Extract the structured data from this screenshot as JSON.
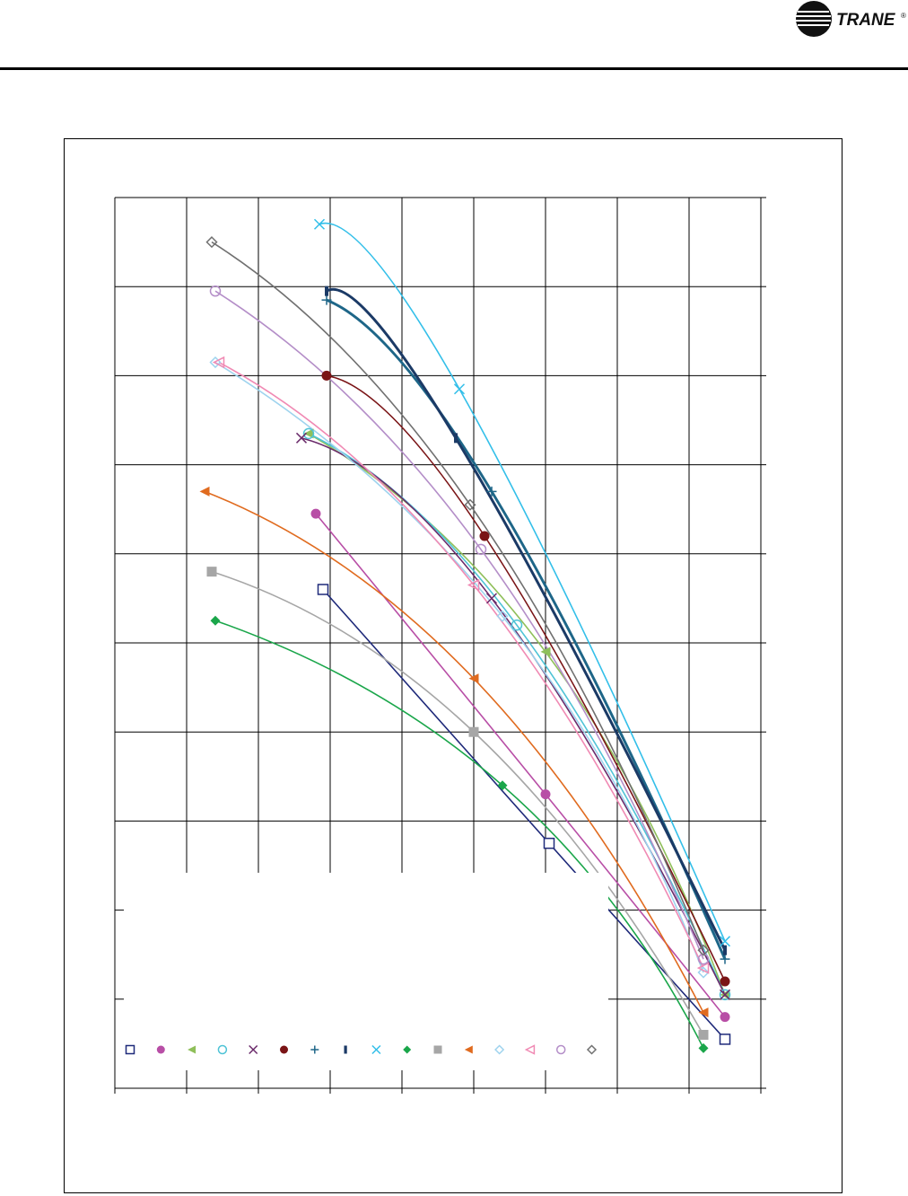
{
  "brand": {
    "name": "TRANE",
    "registered": "®"
  },
  "chart_data": {
    "type": "line",
    "title": "",
    "xlabel": "",
    "ylabel": "",
    "xlim": [
      0,
      9
    ],
    "ylim": [
      0,
      10
    ],
    "grid": true,
    "legend_placement": "bottom-left",
    "series": [
      {
        "marker": "square-open",
        "color": "#1f2a7a",
        "points": [
          [
            2.9,
            5.6
          ],
          [
            6.05,
            2.75
          ],
          [
            8.5,
            0.55
          ]
        ]
      },
      {
        "marker": "circle",
        "color": "#b84ea6",
        "points": [
          [
            2.8,
            6.45
          ],
          [
            6.0,
            3.3
          ],
          [
            8.5,
            0.8
          ]
        ]
      },
      {
        "marker": "triangle-left",
        "color": "#8fbf5a",
        "points": [
          [
            2.7,
            7.35
          ],
          [
            6.0,
            4.9
          ],
          [
            8.5,
            1.05
          ]
        ]
      },
      {
        "marker": "circle-open",
        "color": "#4ec3d6",
        "points": [
          [
            2.7,
            7.35
          ],
          [
            5.6,
            5.2
          ],
          [
            8.5,
            1.05
          ]
        ]
      },
      {
        "marker": "x",
        "color": "#6a2a6a",
        "points": [
          [
            2.6,
            7.3
          ],
          [
            5.25,
            5.5
          ],
          [
            8.5,
            1.05
          ]
        ]
      },
      {
        "marker": "circle",
        "color": "#7a1416",
        "points": [
          [
            2.95,
            8.0
          ],
          [
            5.15,
            6.2
          ],
          [
            8.5,
            1.2
          ]
        ]
      },
      {
        "marker": "plus",
        "color": "#1e6688",
        "points": [
          [
            2.95,
            8.85
          ],
          [
            5.25,
            6.7
          ],
          [
            8.5,
            1.45
          ]
        ]
      },
      {
        "marker": "bar",
        "color": "#1b3a66",
        "points": [
          [
            2.95,
            8.95
          ],
          [
            4.75,
            7.3
          ],
          [
            8.5,
            1.55
          ]
        ]
      },
      {
        "marker": "x",
        "color": "#33bfe9",
        "points": [
          [
            2.85,
            9.7
          ],
          [
            4.8,
            7.85
          ],
          [
            8.5,
            1.65
          ]
        ]
      },
      {
        "marker": "diamond",
        "color": "#1aa64a",
        "points": [
          [
            1.4,
            5.25
          ],
          [
            5.4,
            3.4
          ],
          [
            8.2,
            0.45
          ]
        ]
      },
      {
        "marker": "square",
        "color": "#a6a6a6",
        "points": [
          [
            1.35,
            5.8
          ],
          [
            5.0,
            4.0
          ],
          [
            8.2,
            0.6
          ]
        ]
      },
      {
        "marker": "triangle-left",
        "color": "#e06b1f",
        "points": [
          [
            1.25,
            6.7
          ],
          [
            5.0,
            4.6
          ],
          [
            8.2,
            0.85
          ]
        ]
      },
      {
        "marker": "diamond-open",
        "color": "#9ed3ee",
        "points": [
          [
            1.4,
            8.15
          ],
          [
            5.4,
            5.3
          ],
          [
            8.2,
            1.3
          ]
        ]
      },
      {
        "marker": "triangle-left-open",
        "color": "#f08ab4",
        "points": [
          [
            1.45,
            8.15
          ],
          [
            5.0,
            5.65
          ],
          [
            8.2,
            1.35
          ]
        ]
      },
      {
        "marker": "circle-open",
        "color": "#b48ec8",
        "points": [
          [
            1.4,
            8.95
          ],
          [
            5.1,
            6.05
          ],
          [
            8.2,
            1.45
          ]
        ]
      },
      {
        "marker": "diamond-open",
        "color": "#707070",
        "points": [
          [
            1.35,
            9.5
          ],
          [
            4.95,
            6.55
          ],
          [
            8.2,
            1.55
          ]
        ]
      }
    ]
  }
}
